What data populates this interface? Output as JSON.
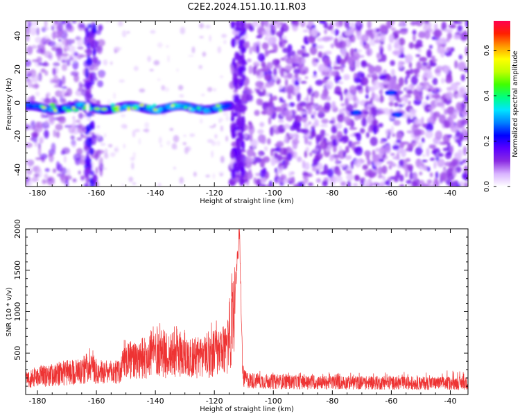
{
  "figure": {
    "title": "C2E2.2024.151.10.11.R03"
  },
  "chart_data": [
    {
      "type": "heatmap",
      "xlabel": "Height of straight line (km)",
      "ylabel": "Frequency (Hz)",
      "xlim": [
        -184,
        -34
      ],
      "ylim": [
        -50,
        49
      ],
      "xticks": [
        -180,
        -160,
        -140,
        -120,
        -100,
        -80,
        -60,
        -40
      ],
      "yticks": [
        -40,
        -20,
        0,
        20,
        40
      ],
      "colorbar": {
        "label": "Normalized spectral amplitude",
        "range": [
          0,
          0.73
        ],
        "ticks": [
          0.0,
          0.2,
          0.4,
          0.6
        ],
        "tick_labels": [
          "0.0",
          "0.2",
          "0.4",
          "0.6"
        ],
        "colormap": [
          "#ffffff",
          "#d9b3ff",
          "#8a2be2",
          "#5a00ff",
          "#0000ff",
          "#0080ff",
          "#00e5ff",
          "#00ff80",
          "#40ff00",
          "#c0ff00",
          "#ffff00",
          "#ff9900",
          "#ff2000",
          "#ff0050"
        ]
      },
      "features": {
        "signal_band_freq_hz": -3,
        "signal_band_x_range": [
          -184,
          -114
        ],
        "signal_cutoff_x": -114,
        "low_noise_region": [
          -158,
          -114
        ],
        "high_noise_region": [
          -114,
          -34
        ],
        "isolated_blobs": [
          {
            "x": -60,
            "y": 6
          },
          {
            "x": -58,
            "y": -7
          },
          {
            "x": -72,
            "y": -6
          }
        ]
      }
    },
    {
      "type": "line",
      "xlabel": "Height of straight line (km)",
      "ylabel": "SNR (10 * v/v)",
      "xlim": [
        -184,
        -34
      ],
      "ylim": [
        0,
        2000
      ],
      "xticks": [
        -180,
        -160,
        -140,
        -120,
        -100,
        -80,
        -60,
        -40
      ],
      "yticks": [
        500,
        1000,
        1500,
        2000
      ],
      "series": [
        {
          "color": "#ee3333",
          "x": [
            -184,
            -180,
            -176,
            -172,
            -168,
            -164,
            -162,
            -160,
            -156,
            -152,
            -150,
            -148,
            -146,
            -144,
            -142,
            -140,
            -138,
            -136,
            -134,
            -132,
            -130,
            -128,
            -126,
            -124,
            -122,
            -120,
            -118,
            -116,
            -115,
            -114,
            -113,
            -112,
            -111.5,
            -111,
            -110.5,
            -110,
            -108,
            -104,
            -100,
            -96,
            -92,
            -88,
            -84,
            -80,
            -76,
            -72,
            -68,
            -64,
            -60,
            -56,
            -52,
            -48,
            -44,
            -40,
            -36,
            -34
          ],
          "y": [
            220,
            250,
            270,
            300,
            320,
            350,
            460,
            330,
            300,
            320,
            500,
            480,
            450,
            520,
            560,
            620,
            600,
            550,
            600,
            580,
            560,
            520,
            520,
            540,
            560,
            600,
            560,
            660,
            820,
            1000,
            1300,
            1700,
            1980,
            1200,
            400,
            220,
            200,
            190,
            180,
            180,
            175,
            175,
            170,
            170,
            170,
            165,
            165,
            165,
            165,
            160,
            160,
            160,
            160,
            160,
            160,
            160
          ],
          "peak_envelope": [
            320,
            360,
            380,
            400,
            420,
            470,
            670,
            380,
            380,
            420,
            760,
            650,
            600,
            700,
            800,
            930,
            880,
            740,
            880,
            820,
            780,
            700,
            720,
            760,
            800,
            960,
            900,
            980,
            1180,
            1500,
            1700,
            1900,
            1990,
            1500,
            650,
            350,
            290,
            290,
            270,
            280,
            260,
            280,
            260,
            270,
            260,
            270,
            260,
            280,
            270,
            280,
            290,
            280,
            280,
            300,
            280,
            280
          ]
        }
      ]
    }
  ]
}
